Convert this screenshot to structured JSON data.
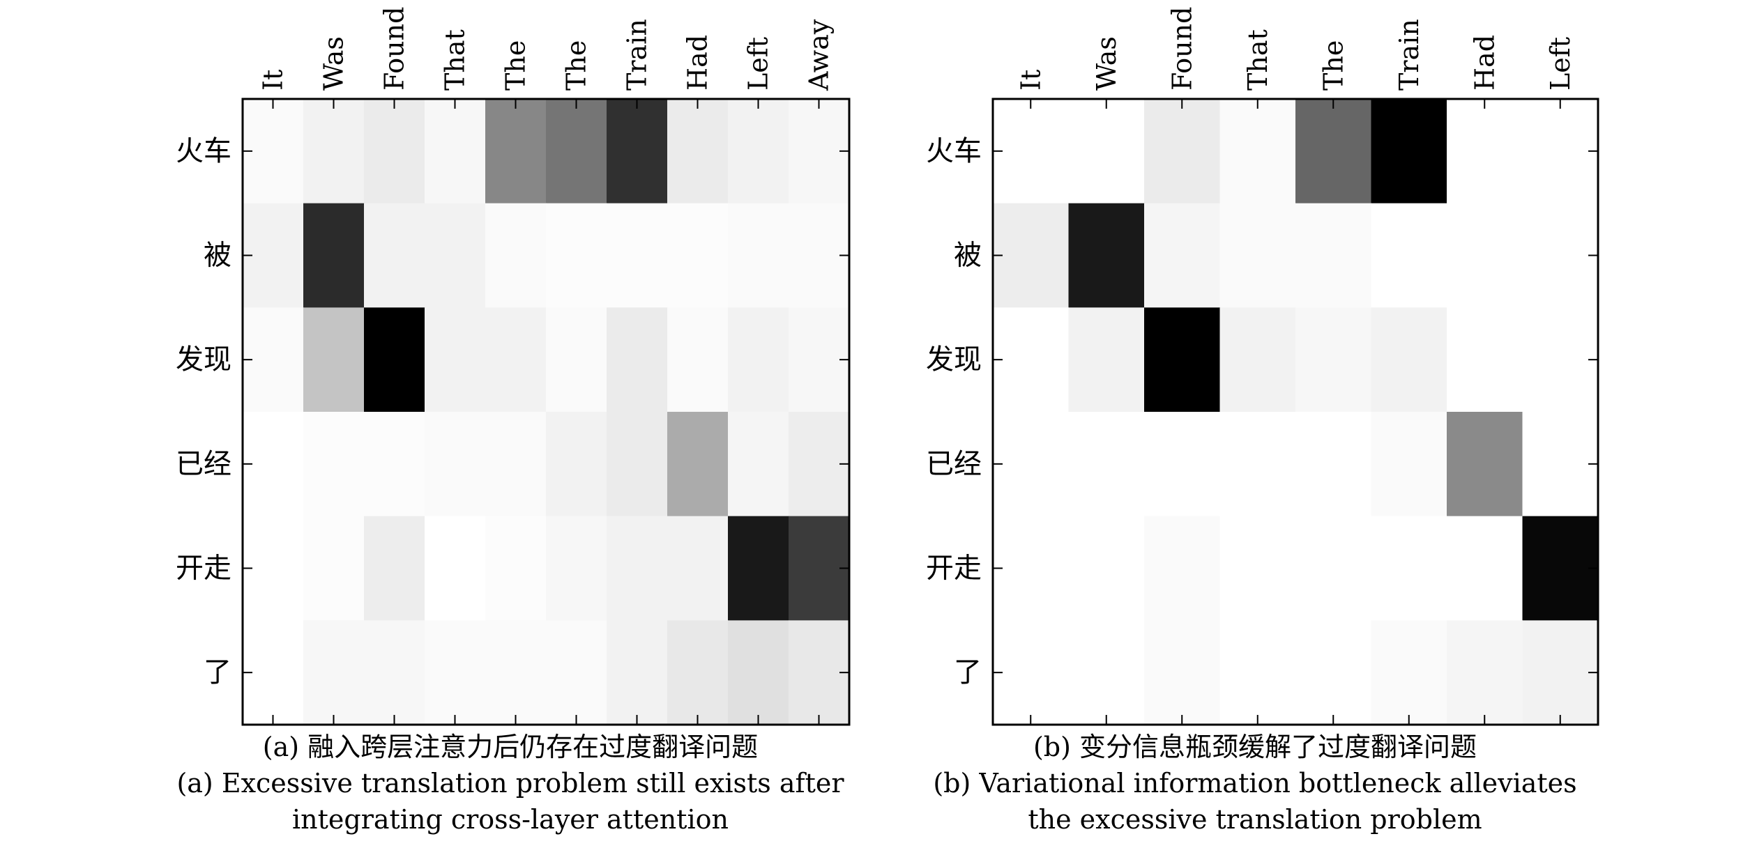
{
  "chart_data": [
    {
      "type": "heatmap",
      "title": "",
      "xlabel": "",
      "ylabel": "",
      "x": [
        "It",
        "Was",
        "Found",
        "That",
        "The",
        "The",
        "Train",
        "Had",
        "Left",
        "Away"
      ],
      "y": [
        "火车",
        "被",
        "发现",
        "已经",
        "开走",
        "了"
      ],
      "values": [
        [
          0.02,
          0.05,
          0.08,
          0.03,
          0.47,
          0.54,
          0.81,
          0.08,
          0.05,
          0.03
        ],
        [
          0.05,
          0.83,
          0.05,
          0.05,
          0.02,
          0.01,
          0.01,
          0.01,
          0.02,
          0.02
        ],
        [
          0.02,
          0.23,
          1.0,
          0.05,
          0.05,
          0.02,
          0.08,
          0.02,
          0.05,
          0.03
        ],
        [
          0.0,
          0.01,
          0.01,
          0.02,
          0.02,
          0.05,
          0.08,
          0.33,
          0.04,
          0.07
        ],
        [
          0.0,
          0.01,
          0.07,
          0.0,
          0.01,
          0.03,
          0.05,
          0.05,
          0.9,
          0.77
        ],
        [
          0.0,
          0.03,
          0.03,
          0.02,
          0.02,
          0.02,
          0.05,
          0.09,
          0.12,
          0.09
        ]
      ],
      "colormap": "gray_r",
      "caption": {
        "line1": "(a) 融入跨层注意力后仍存在过度翻译问题",
        "line2": "(a) Excessive translation problem still exists after",
        "line3": "integrating cross-layer attention"
      }
    },
    {
      "type": "heatmap",
      "title": "",
      "xlabel": "",
      "ylabel": "",
      "x": [
        "It",
        "Was",
        "Found",
        "That",
        "The",
        "Train",
        "Had",
        "Left"
      ],
      "y": [
        "火车",
        "被",
        "发现",
        "已经",
        "开走",
        "了"
      ],
      "values": [
        [
          0.0,
          0.0,
          0.08,
          0.02,
          0.6,
          1.0,
          0.0,
          0.0
        ],
        [
          0.07,
          0.9,
          0.04,
          0.02,
          0.02,
          0.0,
          0.0,
          0.0
        ],
        [
          0.0,
          0.05,
          1.0,
          0.05,
          0.03,
          0.05,
          0.0,
          0.0
        ],
        [
          0.0,
          0.0,
          0.0,
          0.0,
          0.0,
          0.02,
          0.46,
          0.0
        ],
        [
          0.0,
          0.0,
          0.02,
          0.0,
          0.0,
          0.0,
          0.0,
          0.97
        ],
        [
          0.0,
          0.0,
          0.02,
          0.0,
          0.0,
          0.02,
          0.04,
          0.05
        ]
      ],
      "colormap": "gray_r",
      "caption": {
        "line1": "(b) 变分信息瓶颈缓解了过度翻译问题",
        "line2": "(b) Variational information bottleneck alleviates",
        "line3": "the excessive translation problem"
      }
    }
  ]
}
